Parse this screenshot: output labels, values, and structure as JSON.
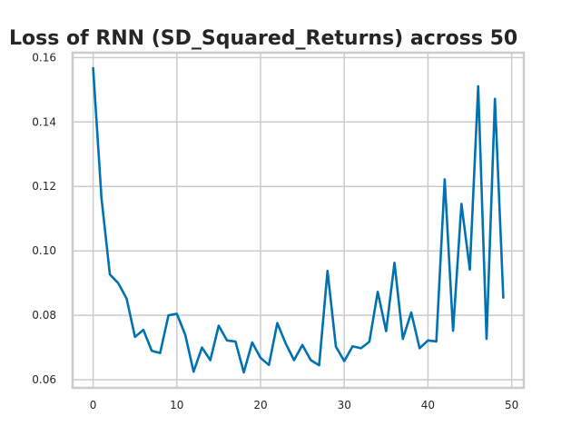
{
  "chart_data": {
    "type": "line",
    "title": "Loss of RNN (SD_Squared_Returns) across 50",
    "xlabel": "",
    "ylabel": "",
    "xlim": [
      -2.45,
      51.45
    ],
    "ylim": [
      0.0575,
      0.1615
    ],
    "x_ticks": [
      0,
      10,
      20,
      30,
      40,
      50
    ],
    "y_ticks": [
      0.06,
      0.08,
      0.1,
      0.12,
      0.14,
      0.16
    ],
    "y_tick_labels": [
      "0.06",
      "0.08",
      "0.10",
      "0.12",
      "0.14",
      "0.16"
    ],
    "grid": true,
    "color": "#0072b2",
    "series": [
      {
        "x": [
          0,
          1,
          2,
          3,
          4,
          5,
          6,
          7,
          8,
          9,
          10,
          11,
          12,
          13,
          14,
          15,
          16,
          17,
          18,
          19,
          20,
          21,
          22,
          23,
          24,
          25,
          26,
          27,
          28,
          29,
          30,
          31,
          32,
          33,
          34,
          35,
          36,
          37,
          38,
          39,
          40,
          41,
          42,
          43,
          44,
          45,
          46,
          47,
          48,
          49
        ],
        "values": [
          0.1567,
          0.1163,
          0.0927,
          0.09,
          0.0852,
          0.0733,
          0.0755,
          0.069,
          0.0683,
          0.08,
          0.0805,
          0.074,
          0.0625,
          0.07,
          0.0661,
          0.0768,
          0.0722,
          0.0719,
          0.0623,
          0.0716,
          0.0668,
          0.0646,
          0.0776,
          0.0713,
          0.0661,
          0.0708,
          0.0661,
          0.0645,
          0.0938,
          0.0703,
          0.0658,
          0.0704,
          0.0698,
          0.0718,
          0.0873,
          0.0751,
          0.0963,
          0.0727,
          0.0809,
          0.0698,
          0.0722,
          0.0719,
          0.1222,
          0.0752,
          0.1146,
          0.0942,
          0.1511,
          0.0727,
          0.1472,
          0.0855
        ]
      }
    ]
  }
}
